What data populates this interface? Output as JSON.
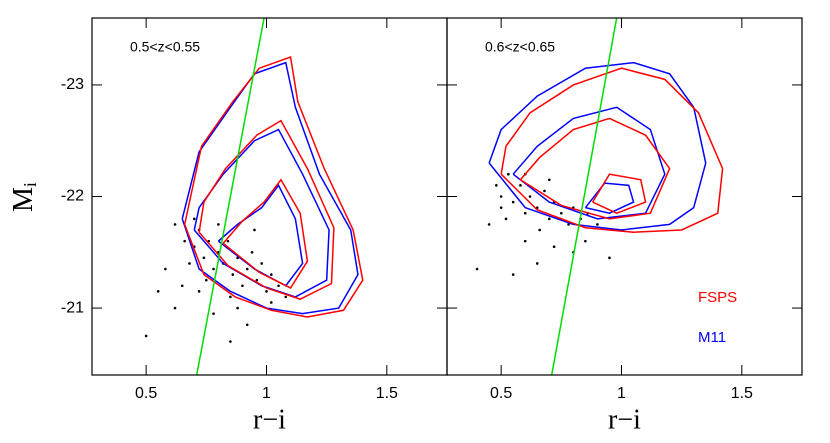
{
  "chart_data": [
    {
      "type": "contour",
      "label": "0.5<z<0.55",
      "xlabel": "r−i",
      "ylabel": "M",
      "ylabel_sub": "i",
      "xlim": [
        0.275,
        1.75
      ],
      "ylim": [
        -20.4,
        -23.6
      ],
      "xticks": [
        0.5,
        1,
        1.5
      ],
      "yticks": [
        -23,
        -22,
        -21
      ],
      "points": {
        "color": "#000000",
        "x": [
          0.62,
          0.66,
          0.7,
          0.72,
          0.74,
          0.76,
          0.78,
          0.8,
          0.82,
          0.84,
          0.86,
          0.88,
          0.9,
          0.92,
          0.94,
          0.96,
          0.98,
          1.0,
          1.02,
          1.05,
          1.08,
          0.7,
          0.75,
          0.68,
          0.85,
          0.55,
          0.58,
          0.5,
          0.62,
          0.78,
          0.85,
          0.92,
          1.02,
          0.88,
          0.65,
          0.95,
          0.8,
          0.72
        ],
        "y": [
          -21.75,
          -21.6,
          -21.55,
          -21.7,
          -21.45,
          -21.6,
          -21.35,
          -21.5,
          -21.4,
          -21.6,
          -21.3,
          -21.45,
          -21.2,
          -21.35,
          -21.5,
          -21.25,
          -21.4,
          -21.15,
          -21.3,
          -21.2,
          -21.1,
          -21.8,
          -21.25,
          -21.4,
          -21.1,
          -21.15,
          -21.35,
          -20.75,
          -21.0,
          -20.95,
          -20.7,
          -20.85,
          -21.05,
          -21.0,
          -21.2,
          -21.7,
          -21.75,
          -21.15
        ]
      },
      "contours": [
        {
          "color": "#0000ff",
          "x": [
            0.65,
            0.72,
            0.85,
            1.0,
            1.15,
            1.3,
            1.38,
            1.35,
            1.22,
            1.12,
            1.08,
            0.95,
            0.85,
            0.72,
            0.65
          ],
          "y": [
            -21.8,
            -21.35,
            -21.15,
            -21.0,
            -20.95,
            -21.0,
            -21.3,
            -21.7,
            -22.2,
            -22.8,
            -23.2,
            -23.1,
            -22.8,
            -22.4,
            -21.8
          ]
        },
        {
          "color": "#ff0000",
          "x": [
            0.66,
            0.74,
            0.87,
            1.02,
            1.17,
            1.32,
            1.4,
            1.36,
            1.24,
            1.13,
            1.1,
            0.97,
            0.86,
            0.73,
            0.66
          ],
          "y": [
            -21.75,
            -21.3,
            -21.1,
            -20.98,
            -20.92,
            -20.98,
            -21.25,
            -21.7,
            -22.25,
            -22.85,
            -23.25,
            -23.15,
            -22.85,
            -22.45,
            -21.75
          ]
        },
        {
          "color": "#0000ff",
          "x": [
            0.7,
            0.82,
            0.98,
            1.12,
            1.25,
            1.26,
            1.15,
            1.05,
            0.95,
            0.82,
            0.72,
            0.7
          ],
          "y": [
            -21.7,
            -21.4,
            -21.2,
            -21.1,
            -21.25,
            -21.7,
            -22.2,
            -22.6,
            -22.5,
            -22.2,
            -21.9,
            -21.7
          ]
        },
        {
          "color": "#ff0000",
          "x": [
            0.72,
            0.84,
            1.0,
            1.14,
            1.27,
            1.28,
            1.17,
            1.06,
            0.96,
            0.83,
            0.74,
            0.72
          ],
          "y": [
            -21.68,
            -21.38,
            -21.18,
            -21.08,
            -21.22,
            -21.72,
            -22.25,
            -22.68,
            -22.55,
            -22.25,
            -21.95,
            -21.68
          ]
        },
        {
          "color": "#0000ff",
          "x": [
            0.8,
            0.95,
            1.08,
            1.15,
            1.12,
            1.05,
            0.98,
            0.88,
            0.8
          ],
          "y": [
            -21.6,
            -21.35,
            -21.2,
            -21.4,
            -21.8,
            -22.1,
            -21.9,
            -21.75,
            -21.6
          ]
        },
        {
          "color": "#ff0000",
          "x": [
            0.82,
            0.97,
            1.1,
            1.17,
            1.14,
            1.06,
            0.99,
            0.9,
            0.82
          ],
          "y": [
            -21.58,
            -21.32,
            -21.18,
            -21.42,
            -21.85,
            -22.15,
            -21.95,
            -21.78,
            -21.58
          ]
        }
      ],
      "line": {
        "color": "#00dd00",
        "x": [
          0.71,
          0.99
        ],
        "y": [
          -20.4,
          -23.6
        ]
      }
    },
    {
      "type": "contour",
      "label": "0.6<z<0.65",
      "xlabel": "r−i",
      "xlim": [
        0.275,
        1.75
      ],
      "ylim": [
        -20.4,
        -23.6
      ],
      "xticks": [
        0.5,
        1,
        1.5
      ],
      "points": {
        "color": "#000000",
        "x": [
          0.48,
          0.5,
          0.53,
          0.55,
          0.58,
          0.6,
          0.62,
          0.65,
          0.68,
          0.7,
          0.72,
          0.75,
          0.78,
          0.8,
          0.83,
          0.86,
          0.9,
          0.6,
          0.7,
          0.52,
          0.45,
          0.6,
          0.72,
          0.4,
          0.55,
          0.65,
          0.8,
          0.95,
          0.85,
          0.5,
          0.66
        ],
        "y": [
          -22.1,
          -22.0,
          -22.2,
          -21.95,
          -22.1,
          -21.85,
          -22.0,
          -21.9,
          -22.05,
          -21.8,
          -21.95,
          -21.85,
          -21.75,
          -21.9,
          -21.8,
          -21.85,
          -21.75,
          -22.2,
          -22.15,
          -21.8,
          -21.75,
          -21.6,
          -21.55,
          -21.35,
          -21.3,
          -21.4,
          -21.5,
          -21.45,
          -21.6,
          -21.9,
          -21.7
        ]
      },
      "contours": [
        {
          "color": "#0000ff",
          "x": [
            0.45,
            0.6,
            0.8,
            1.0,
            1.2,
            1.3,
            1.35,
            1.3,
            1.2,
            1.05,
            0.85,
            0.65,
            0.5,
            0.45
          ],
          "y": [
            -22.3,
            -21.9,
            -21.75,
            -21.7,
            -21.75,
            -21.9,
            -22.3,
            -22.8,
            -23.1,
            -23.2,
            -23.15,
            -22.9,
            -22.6,
            -22.3
          ]
        },
        {
          "color": "#ff0000",
          "x": [
            0.5,
            0.65,
            0.85,
            1.05,
            1.25,
            1.4,
            1.42,
            1.32,
            1.18,
            1.0,
            0.8,
            0.62,
            0.52,
            0.5
          ],
          "y": [
            -22.2,
            -21.88,
            -21.72,
            -21.68,
            -21.7,
            -21.85,
            -22.25,
            -22.75,
            -23.05,
            -23.15,
            -23.0,
            -22.75,
            -22.45,
            -22.2
          ]
        },
        {
          "color": "#0000ff",
          "x": [
            0.55,
            0.7,
            0.9,
            1.1,
            1.18,
            1.12,
            0.98,
            0.8,
            0.65,
            0.55
          ],
          "y": [
            -22.2,
            -21.95,
            -21.8,
            -21.85,
            -22.2,
            -22.6,
            -22.8,
            -22.7,
            -22.45,
            -22.2
          ]
        },
        {
          "color": "#ff0000",
          "x": [
            0.58,
            0.75,
            0.95,
            1.12,
            1.2,
            1.1,
            0.95,
            0.8,
            0.66,
            0.58
          ],
          "y": [
            -22.15,
            -21.92,
            -21.8,
            -21.85,
            -22.25,
            -22.55,
            -22.7,
            -22.6,
            -22.35,
            -22.15
          ]
        },
        {
          "color": "#0000ff",
          "x": [
            0.85,
            0.95,
            1.05,
            1.03,
            0.93,
            0.85
          ],
          "y": [
            -21.9,
            -21.85,
            -21.95,
            -22.1,
            -22.12,
            -21.9
          ]
        },
        {
          "color": "#ff0000",
          "x": [
            0.88,
            0.98,
            1.1,
            1.08,
            0.95,
            0.88
          ],
          "y": [
            -21.95,
            -21.85,
            -21.95,
            -22.15,
            -22.2,
            -21.95
          ]
        }
      ],
      "line": {
        "color": "#00dd00",
        "x": [
          0.71,
          0.98
        ],
        "y": [
          -20.4,
          -23.6
        ]
      },
      "legend": [
        {
          "name": "FSPS",
          "color": "#ff0000"
        },
        {
          "name": "M11",
          "color": "#0000ff"
        }
      ]
    }
  ]
}
